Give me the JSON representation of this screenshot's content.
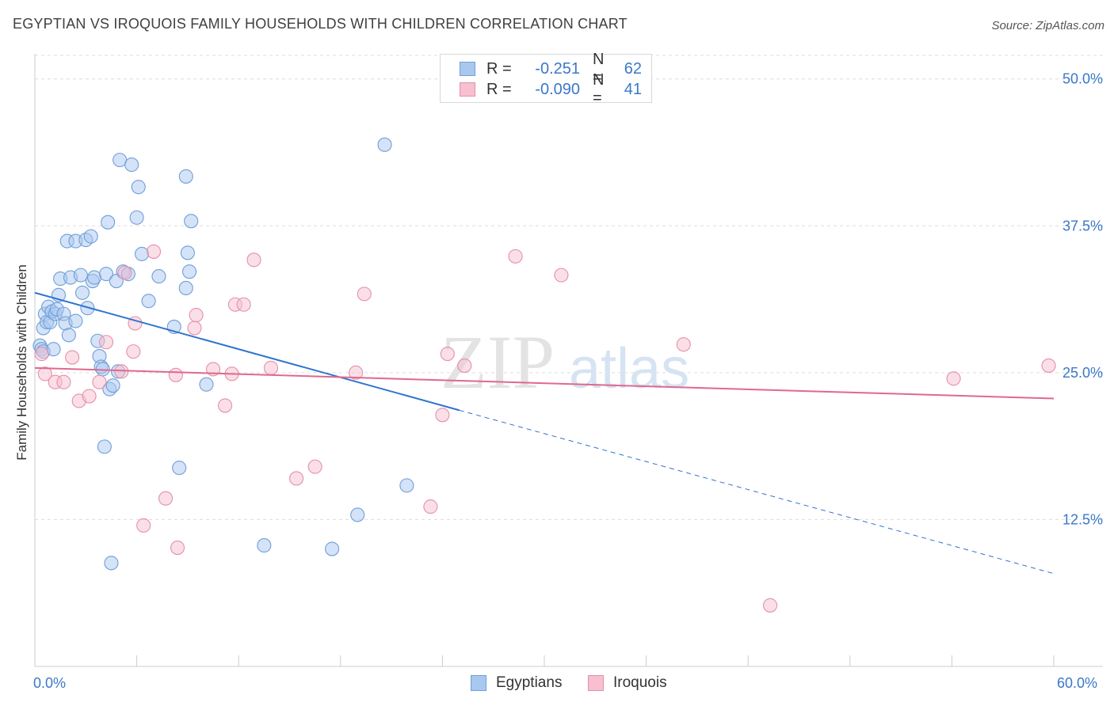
{
  "title": "EGYPTIAN VS IROQUOIS FAMILY HOUSEHOLDS WITH CHILDREN CORRELATION CHART",
  "source": "Source: ZipAtlas.com",
  "watermark": {
    "zip": "ZIP",
    "atlas": "atlas"
  },
  "legend": {
    "rows": [
      {
        "r_label": "R =",
        "r_value": "-0.251",
        "n_label": "N =",
        "n_value": "62",
        "color": "#a9c8ef",
        "border": "#6f9fd8"
      },
      {
        "r_label": "R =",
        "r_value": "-0.090",
        "n_label": "N =",
        "n_value": "41",
        "color": "#f7bfd0",
        "border": "#e58fab"
      }
    ]
  },
  "bottom_legend": [
    {
      "label": "Egyptians",
      "color": "#a9c8ef",
      "border": "#6f9fd8"
    },
    {
      "label": "Iroquois",
      "color": "#f7bfd0",
      "border": "#e58fab"
    }
  ],
  "x_tick_labels": {
    "min": "0.0%",
    "max": "60.0%"
  },
  "chart_data": {
    "type": "scatter",
    "ylabel": "Family Households with Children",
    "xlim": [
      0,
      60
    ],
    "ylim": [
      0,
      52
    ],
    "y_ticks": [
      {
        "value": 12.5,
        "label": "12.5%"
      },
      {
        "value": 25.0,
        "label": "25.0%"
      },
      {
        "value": 37.5,
        "label": "37.5%"
      },
      {
        "value": 50.0,
        "label": "50.0%"
      }
    ],
    "x_ticks": [
      0,
      6,
      12,
      18,
      24,
      30,
      36,
      42,
      48,
      54,
      60
    ],
    "grid": true,
    "series": [
      {
        "name": "Egyptians",
        "color": "#6f9fd8",
        "fill": "#a9c8ef",
        "trend": {
          "x0": 0,
          "y0": 31.8,
          "x1": 25,
          "y1": 21.8,
          "dash_to_x": 60,
          "dash_to_y": 7.9,
          "color": "#2f74cf"
        },
        "points": [
          [
            0.3,
            27.3
          ],
          [
            0.4,
            27.0
          ],
          [
            0.5,
            28.8
          ],
          [
            0.5,
            26.8
          ],
          [
            0.6,
            30.0
          ],
          [
            0.7,
            29.3
          ],
          [
            0.8,
            30.6
          ],
          [
            0.9,
            29.3
          ],
          [
            1.0,
            30.2
          ],
          [
            1.1,
            27.0
          ],
          [
            1.2,
            30.0
          ],
          [
            1.3,
            30.4
          ],
          [
            1.4,
            31.6
          ],
          [
            1.5,
            33.0
          ],
          [
            1.7,
            30.0
          ],
          [
            1.8,
            29.2
          ],
          [
            2.0,
            28.2
          ],
          [
            1.9,
            36.2
          ],
          [
            2.1,
            33.1
          ],
          [
            2.4,
            36.2
          ],
          [
            2.4,
            29.4
          ],
          [
            2.7,
            33.3
          ],
          [
            2.8,
            31.8
          ],
          [
            3.0,
            36.3
          ],
          [
            3.1,
            30.5
          ],
          [
            3.3,
            36.6
          ],
          [
            3.4,
            32.8
          ],
          [
            3.5,
            33.1
          ],
          [
            3.7,
            27.7
          ],
          [
            3.8,
            26.4
          ],
          [
            3.9,
            25.5
          ],
          [
            4.0,
            25.3
          ],
          [
            4.2,
            33.4
          ],
          [
            4.3,
            37.8
          ],
          [
            4.4,
            23.6
          ],
          [
            4.5,
            8.8
          ],
          [
            4.6,
            23.9
          ],
          [
            4.8,
            32.8
          ],
          [
            4.9,
            25.1
          ],
          [
            5.0,
            43.1
          ],
          [
            5.2,
            33.6
          ],
          [
            5.5,
            33.4
          ],
          [
            5.7,
            42.7
          ],
          [
            6.0,
            38.2
          ],
          [
            6.1,
            40.8
          ],
          [
            6.3,
            35.1
          ],
          [
            6.7,
            31.1
          ],
          [
            7.3,
            33.2
          ],
          [
            4.1,
            18.7
          ],
          [
            8.2,
            28.9
          ],
          [
            8.5,
            16.9
          ],
          [
            8.9,
            32.2
          ],
          [
            8.9,
            41.7
          ],
          [
            9.0,
            35.2
          ],
          [
            9.2,
            37.9
          ],
          [
            10.1,
            24.0
          ],
          [
            13.5,
            10.3
          ],
          [
            17.5,
            10.0
          ],
          [
            19.0,
            12.9
          ],
          [
            20.6,
            44.4
          ],
          [
            21.9,
            15.4
          ],
          [
            9.1,
            33.6
          ]
        ]
      },
      {
        "name": "Iroquois",
        "color": "#e58fab",
        "fill": "#f7bfd0",
        "trend": {
          "x0": 0,
          "y0": 25.4,
          "x1": 60,
          "y1": 22.8,
          "color": "#e0688f"
        },
        "points": [
          [
            0.4,
            26.6
          ],
          [
            0.6,
            24.9
          ],
          [
            1.2,
            24.2
          ],
          [
            1.7,
            24.2
          ],
          [
            2.2,
            26.3
          ],
          [
            2.6,
            22.6
          ],
          [
            3.2,
            23.0
          ],
          [
            3.8,
            24.2
          ],
          [
            4.2,
            27.6
          ],
          [
            5.1,
            25.1
          ],
          [
            5.3,
            33.5
          ],
          [
            5.8,
            26.8
          ],
          [
            5.9,
            29.2
          ],
          [
            6.4,
            12.0
          ],
          [
            7.0,
            35.3
          ],
          [
            7.7,
            14.3
          ],
          [
            8.3,
            24.8
          ],
          [
            8.4,
            10.1
          ],
          [
            9.4,
            28.8
          ],
          [
            9.5,
            29.9
          ],
          [
            10.5,
            25.3
          ],
          [
            11.2,
            22.2
          ],
          [
            11.6,
            24.9
          ],
          [
            11.8,
            30.8
          ],
          [
            12.3,
            30.8
          ],
          [
            12.9,
            34.6
          ],
          [
            13.9,
            25.4
          ],
          [
            15.4,
            16.0
          ],
          [
            16.5,
            17.0
          ],
          [
            18.9,
            25.0
          ],
          [
            19.4,
            31.7
          ],
          [
            23.3,
            13.6
          ],
          [
            24.0,
            21.4
          ],
          [
            24.3,
            26.6
          ],
          [
            25.3,
            25.6
          ],
          [
            28.3,
            34.9
          ],
          [
            31.0,
            33.3
          ],
          [
            38.2,
            27.4
          ],
          [
            43.3,
            5.2
          ],
          [
            54.1,
            24.5
          ],
          [
            59.7,
            25.6
          ]
        ]
      }
    ]
  }
}
